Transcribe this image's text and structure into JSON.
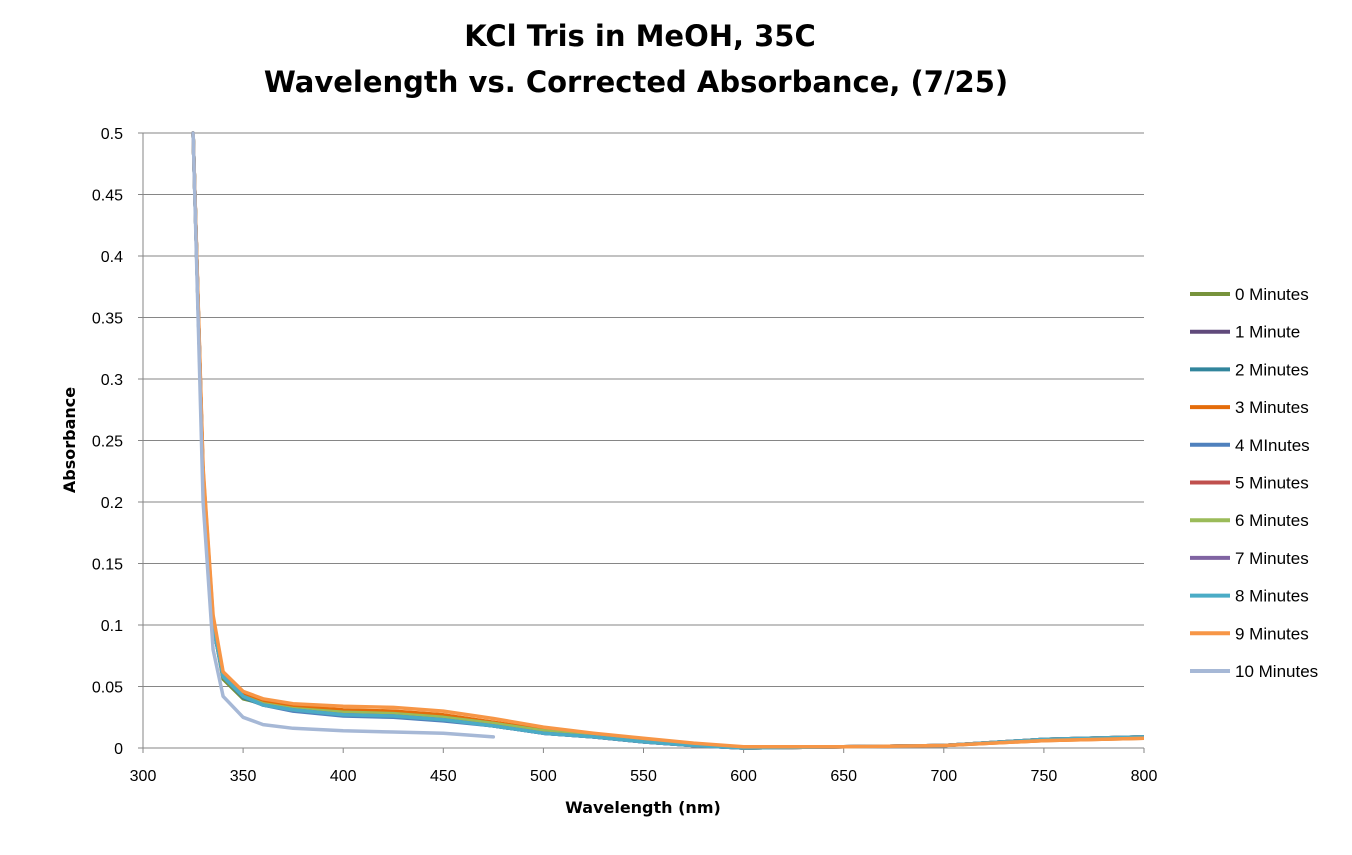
{
  "chart_data": {
    "type": "line",
    "title": "KCl Tris in MeOH, 35C",
    "subtitle": "Wavelength vs. Corrected Absorbance, (7/25)",
    "xlabel": "Wavelength (nm)",
    "ylabel": "Absorbance",
    "xlim": [
      300,
      800
    ],
    "ylim": [
      0,
      0.5
    ],
    "x_ticks": [
      "300",
      "350",
      "400",
      "450",
      "500",
      "550",
      "600",
      "650",
      "700",
      "750",
      "800"
    ],
    "y_ticks": [
      "0",
      "0.05",
      "0.1",
      "0.15",
      "0.2",
      "0.25",
      "0.3",
      "0.35",
      "0.4",
      "0.45",
      "0.5"
    ],
    "grid": "horizontal",
    "legend_position": "right",
    "x": [
      325,
      330,
      335,
      340,
      350,
      360,
      375,
      400,
      425,
      450,
      475,
      500,
      525,
      550,
      575,
      600,
      650,
      700,
      750,
      800
    ],
    "series": [
      {
        "name": "0 Minutes",
        "color": "#77933C",
        "values": [
          0.5,
          0.22,
          0.1,
          0.056,
          0.04,
          0.036,
          0.032,
          0.028,
          0.028,
          0.025,
          0.02,
          0.014,
          0.01,
          0.006,
          0.003,
          0.0,
          0.001,
          0.002,
          0.007,
          0.009
        ]
      },
      {
        "name": "1 Minute",
        "color": "#604A7B",
        "values": [
          0.5,
          0.22,
          0.1,
          0.058,
          0.042,
          0.036,
          0.031,
          0.027,
          0.026,
          0.023,
          0.018,
          0.012,
          0.009,
          0.005,
          0.002,
          0.0,
          0.001,
          0.002,
          0.007,
          0.009
        ]
      },
      {
        "name": "2 Minutes",
        "color": "#31859C",
        "values": [
          0.5,
          0.22,
          0.1,
          0.058,
          0.041,
          0.035,
          0.031,
          0.027,
          0.026,
          0.023,
          0.018,
          0.012,
          0.009,
          0.005,
          0.002,
          0.0,
          0.001,
          0.002,
          0.007,
          0.009
        ]
      },
      {
        "name": "3 Minutes",
        "color": "#E46C0A",
        "values": [
          0.5,
          0.225,
          0.105,
          0.06,
          0.044,
          0.038,
          0.034,
          0.031,
          0.03,
          0.027,
          0.021,
          0.015,
          0.011,
          0.007,
          0.003,
          0.0,
          0.001,
          0.002,
          0.006,
          0.008
        ]
      },
      {
        "name": "4 MInutes",
        "color": "#4F81BD",
        "values": [
          0.5,
          0.22,
          0.1,
          0.058,
          0.042,
          0.035,
          0.03,
          0.026,
          0.025,
          0.022,
          0.018,
          0.012,
          0.009,
          0.005,
          0.002,
          0.0,
          0.001,
          0.002,
          0.007,
          0.009
        ]
      },
      {
        "name": "5 Minutes",
        "color": "#C0504D",
        "values": [
          0.5,
          0.22,
          0.1,
          0.058,
          0.042,
          0.036,
          0.031,
          0.028,
          0.027,
          0.024,
          0.019,
          0.013,
          0.009,
          0.005,
          0.002,
          0.0,
          0.001,
          0.002,
          0.007,
          0.009
        ]
      },
      {
        "name": "6 Minutes",
        "color": "#9BBB59",
        "values": [
          0.5,
          0.22,
          0.1,
          0.058,
          0.042,
          0.036,
          0.032,
          0.029,
          0.028,
          0.025,
          0.02,
          0.014,
          0.01,
          0.006,
          0.003,
          0.0,
          0.001,
          0.002,
          0.007,
          0.009
        ]
      },
      {
        "name": "7 Minutes",
        "color": "#8064A2",
        "values": [
          0.5,
          0.22,
          0.1,
          0.058,
          0.042,
          0.035,
          0.031,
          0.027,
          0.026,
          0.023,
          0.018,
          0.012,
          0.009,
          0.005,
          0.002,
          0.0,
          0.001,
          0.002,
          0.007,
          0.009
        ]
      },
      {
        "name": "8 Minutes",
        "color": "#4BACC6",
        "values": [
          0.5,
          0.22,
          0.1,
          0.058,
          0.042,
          0.035,
          0.031,
          0.027,
          0.026,
          0.023,
          0.018,
          0.012,
          0.009,
          0.005,
          0.002,
          0.0,
          0.001,
          0.002,
          0.007,
          0.009
        ]
      },
      {
        "name": "9 Minutes",
        "color": "#F79646",
        "values": [
          0.5,
          0.228,
          0.108,
          0.062,
          0.046,
          0.04,
          0.036,
          0.034,
          0.033,
          0.03,
          0.024,
          0.017,
          0.012,
          0.008,
          0.004,
          0.001,
          0.001,
          0.002,
          0.006,
          0.008
        ]
      },
      {
        "name": "10 Minutes",
        "color": "#A6B8D6",
        "values": [
          0.5,
          0.2,
          0.08,
          0.042,
          0.025,
          0.019,
          0.016,
          0.014,
          0.013,
          0.012,
          0.009,
          null,
          null,
          null,
          null,
          null,
          null,
          null,
          null,
          null
        ]
      }
    ]
  }
}
